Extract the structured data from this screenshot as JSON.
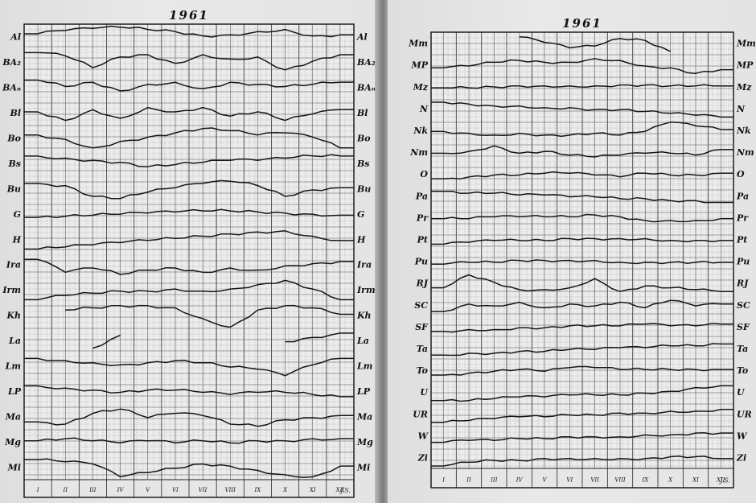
{
  "chart_data": [
    {
      "type": "line",
      "title": "1961",
      "x": [
        "I",
        "II",
        "III",
        "IV",
        "V",
        "VI",
        "VII",
        "VIII",
        "IX",
        "X",
        "XI",
        "XII"
      ],
      "signature": "J.S.",
      "series": [
        {
          "name": "Al",
          "values": [
            0.3,
            0.15,
            0.05,
            0.0,
            0.1,
            0.2,
            0.4,
            0.35,
            0.2,
            0.1,
            0.4,
            0.35
          ]
        },
        {
          "name": "BA₂",
          "values": [
            0.0,
            0.15,
            0.7,
            0.2,
            0.1,
            0.5,
            0.1,
            0.3,
            0.2,
            0.8,
            0.4,
            0.1
          ]
        },
        {
          "name": "BAₙ",
          "values": [
            0.1,
            0.4,
            0.2,
            0.6,
            0.3,
            0.2,
            0.5,
            0.2,
            0.3,
            0.4,
            0.3,
            0.2
          ]
        },
        {
          "name": "Bl",
          "values": [
            0.4,
            0.8,
            0.3,
            0.7,
            0.2,
            0.4,
            0.2,
            0.6,
            0.4,
            0.8,
            0.5,
            0.3
          ]
        },
        {
          "name": "Bo",
          "values": [
            0.3,
            0.5,
            0.9,
            0.6,
            0.4,
            0.2,
            0.0,
            0.1,
            0.3,
            0.2,
            0.4,
            0.9
          ]
        },
        {
          "name": "Bs",
          "values": [
            0.1,
            0.2,
            0.3,
            0.4,
            0.6,
            0.5,
            0.4,
            0.3,
            0.3,
            0.2,
            0.1,
            0.1
          ]
        },
        {
          "name": "Bu",
          "values": [
            0.2,
            0.3,
            0.8,
            0.9,
            0.6,
            0.4,
            0.2,
            0.1,
            0.3,
            0.8,
            0.5,
            0.4
          ]
        },
        {
          "name": "G",
          "values": [
            0.6,
            0.55,
            0.5,
            0.45,
            0.4,
            0.35,
            0.3,
            0.3,
            0.35,
            0.4,
            0.45,
            0.5
          ]
        },
        {
          "name": "H",
          "values": [
            0.9,
            0.8,
            0.7,
            0.6,
            0.5,
            0.4,
            0.3,
            0.2,
            0.1,
            0.05,
            0.3,
            0.5
          ]
        },
        {
          "name": "Ira",
          "values": [
            0.2,
            0.8,
            0.6,
            0.9,
            0.7,
            0.6,
            0.8,
            0.6,
            0.7,
            0.5,
            0.4,
            0.3
          ]
        },
        {
          "name": "Irm",
          "values": [
            0.9,
            0.7,
            0.6,
            0.5,
            0.5,
            0.4,
            0.5,
            0.4,
            0.2,
            0.0,
            0.4,
            0.9
          ]
        },
        {
          "name": "Kh",
          "values": [
            null,
            0.2,
            0.1,
            0.0,
            0.0,
            0.1,
            0.6,
            1.0,
            0.2,
            0.0,
            0.1,
            0.4
          ]
        },
        {
          "name": "La",
          "values": [
            null,
            null,
            0.8,
            0.2,
            null,
            null,
            null,
            null,
            null,
            0.5,
            0.3,
            0.1
          ]
        },
        {
          "name": "Lm",
          "values": [
            0.1,
            0.2,
            0.3,
            0.4,
            0.3,
            0.2,
            0.3,
            0.5,
            0.6,
            0.9,
            0.4,
            0.1
          ]
        },
        {
          "name": "LP",
          "values": [
            0.2,
            0.3,
            0.4,
            0.5,
            0.4,
            0.4,
            0.5,
            0.6,
            0.5,
            0.5,
            0.6,
            0.7
          ]
        },
        {
          "name": "Ma",
          "values": [
            0.7,
            0.8,
            0.3,
            0.1,
            0.5,
            0.3,
            0.4,
            0.8,
            0.9,
            0.6,
            0.5,
            0.4
          ]
        },
        {
          "name": "Mg",
          "values": [
            0.4,
            0.3,
            0.4,
            0.5,
            0.4,
            0.5,
            0.4,
            0.5,
            0.4,
            0.4,
            0.3,
            0.3
          ]
        },
        {
          "name": "Mi",
          "values": [
            0.1,
            0.2,
            0.3,
            0.9,
            0.7,
            0.5,
            0.3,
            0.4,
            0.6,
            0.8,
            0.9,
            0.4
          ]
        }
      ]
    },
    {
      "type": "line",
      "title": "1961",
      "x": [
        "I",
        "II",
        "III",
        "IV",
        "V",
        "VI",
        "VII",
        "VIII",
        "IX",
        "X",
        "XI",
        "XII"
      ],
      "signature": "J.S.",
      "series": [
        {
          "name": "Mm",
          "values": [
            null,
            null,
            null,
            0.1,
            0.4,
            0.7,
            0.6,
            0.2,
            0.3,
            0.9,
            null,
            null
          ]
        },
        {
          "name": "MP",
          "values": [
            0.6,
            0.5,
            0.3,
            0.2,
            0.3,
            0.3,
            0.1,
            0.2,
            0.5,
            0.6,
            0.9,
            0.7
          ]
        },
        {
          "name": "Mz",
          "values": [
            0.5,
            0.5,
            0.45,
            0.4,
            0.4,
            0.4,
            0.4,
            0.35,
            0.35,
            0.4,
            0.4,
            0.4
          ]
        },
        {
          "name": "N",
          "values": [
            0.1,
            0.2,
            0.3,
            0.3,
            0.4,
            0.4,
            0.5,
            0.5,
            0.6,
            0.7,
            0.8,
            0.9
          ]
        },
        {
          "name": "Nk",
          "values": [
            0.5,
            0.6,
            0.7,
            0.6,
            0.7,
            0.7,
            0.6,
            0.7,
            0.5,
            0.0,
            0.2,
            0.4
          ]
        },
        {
          "name": "Nm",
          "values": [
            0.5,
            0.4,
            0.1,
            0.5,
            0.4,
            0.6,
            0.7,
            0.6,
            0.5,
            0.5,
            0.6,
            0.3
          ]
        },
        {
          "name": "O",
          "values": [
            0.7,
            0.6,
            0.5,
            0.5,
            0.4,
            0.4,
            0.5,
            0.6,
            0.4,
            0.5,
            0.5,
            0.4
          ]
        },
        {
          "name": "Pa",
          "values": [
            0.2,
            0.3,
            0.3,
            0.4,
            0.4,
            0.5,
            0.5,
            0.6,
            0.6,
            0.7,
            0.7,
            0.8
          ]
        },
        {
          "name": "Pr",
          "values": [
            0.5,
            0.5,
            0.4,
            0.4,
            0.4,
            0.4,
            0.3,
            0.4,
            0.6,
            0.6,
            0.6,
            0.5
          ]
        },
        {
          "name": "Pt",
          "values": [
            0.7,
            0.6,
            0.5,
            0.5,
            0.5,
            0.4,
            0.4,
            0.4,
            0.4,
            0.5,
            0.5,
            0.5
          ]
        },
        {
          "name": "Pu",
          "values": [
            0.6,
            0.5,
            0.5,
            0.4,
            0.4,
            0.4,
            0.4,
            0.5,
            0.5,
            0.5,
            0.5,
            0.5
          ]
        },
        {
          "name": "RJ",
          "values": [
            0.7,
            0.0,
            0.4,
            0.8,
            0.8,
            0.7,
            0.2,
            0.9,
            0.6,
            0.7,
            0.8,
            0.9
          ]
        },
        {
          "name": "SC",
          "values": [
            0.8,
            0.4,
            0.5,
            0.3,
            0.6,
            0.4,
            0.5,
            0.3,
            0.6,
            0.2,
            0.5,
            0.4
          ]
        },
        {
          "name": "SF",
          "values": [
            0.7,
            0.6,
            0.6,
            0.5,
            0.5,
            0.4,
            0.4,
            0.4,
            0.3,
            0.4,
            0.4,
            0.3
          ]
        },
        {
          "name": "Ta",
          "values": [
            0.8,
            0.7,
            0.7,
            0.6,
            0.6,
            0.5,
            0.5,
            0.4,
            0.4,
            0.3,
            0.3,
            0.2
          ]
        },
        {
          "name": "To",
          "values": [
            0.7,
            0.6,
            0.5,
            0.4,
            0.5,
            0.3,
            0.3,
            0.4,
            0.4,
            0.4,
            0.4,
            0.4
          ]
        },
        {
          "name": "U",
          "values": [
            0.9,
            0.9,
            0.8,
            0.7,
            0.7,
            0.6,
            0.6,
            0.6,
            0.5,
            0.4,
            0.2,
            0.1
          ]
        },
        {
          "name": "UR",
          "values": [
            0.9,
            0.8,
            0.7,
            0.6,
            0.6,
            0.5,
            0.5,
            0.4,
            0.4,
            0.3,
            0.3,
            0.2
          ]
        },
        {
          "name": "W",
          "values": [
            0.8,
            0.7,
            0.7,
            0.6,
            0.6,
            0.5,
            0.5,
            0.5,
            0.4,
            0.4,
            0.3,
            0.3
          ]
        },
        {
          "name": "Zi",
          "values": [
            0.9,
            0.7,
            0.6,
            0.6,
            0.5,
            0.5,
            0.5,
            0.5,
            0.5,
            0.4,
            0.4,
            0.5
          ]
        }
      ]
    }
  ]
}
